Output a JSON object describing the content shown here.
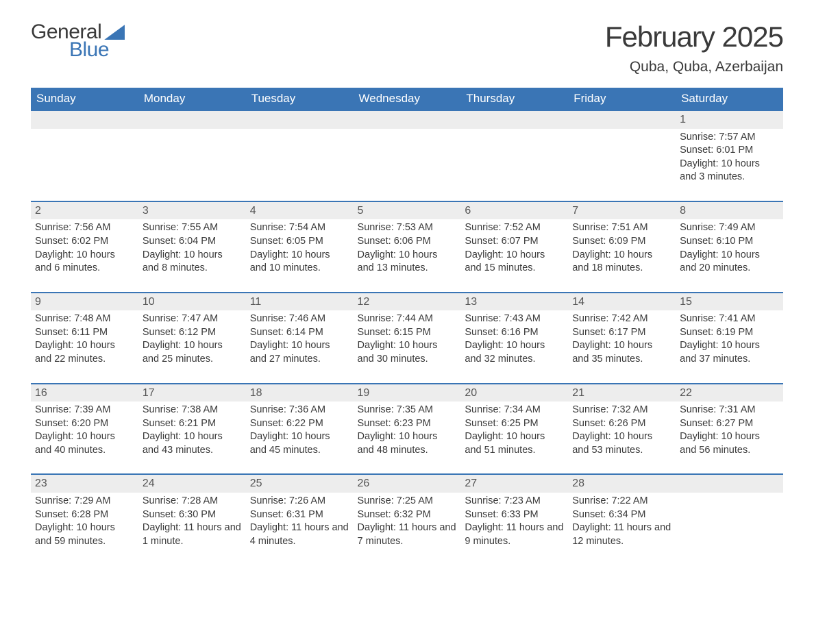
{
  "brand": {
    "line1": "General",
    "line2": "Blue",
    "accent_color": "#3a75b5"
  },
  "title": "February 2025",
  "location": "Quba, Quba, Azerbaijan",
  "colors": {
    "header_bg": "#3a75b5",
    "header_text": "#ffffff",
    "daynum_bg": "#ededed",
    "text": "#3a3a3a",
    "row_border": "#3a75b5",
    "page_bg": "#ffffff"
  },
  "typography": {
    "title_fontsize": 42,
    "location_fontsize": 21,
    "dayheader_fontsize": 17,
    "cell_fontsize": 14.5
  },
  "day_headers": [
    "Sunday",
    "Monday",
    "Tuesday",
    "Wednesday",
    "Thursday",
    "Friday",
    "Saturday"
  ],
  "weeks": [
    [
      null,
      null,
      null,
      null,
      null,
      null,
      {
        "n": "1",
        "sunrise": "Sunrise: 7:57 AM",
        "sunset": "Sunset: 6:01 PM",
        "daylight": "Daylight: 10 hours and 3 minutes."
      }
    ],
    [
      {
        "n": "2",
        "sunrise": "Sunrise: 7:56 AM",
        "sunset": "Sunset: 6:02 PM",
        "daylight": "Daylight: 10 hours and 6 minutes."
      },
      {
        "n": "3",
        "sunrise": "Sunrise: 7:55 AM",
        "sunset": "Sunset: 6:04 PM",
        "daylight": "Daylight: 10 hours and 8 minutes."
      },
      {
        "n": "4",
        "sunrise": "Sunrise: 7:54 AM",
        "sunset": "Sunset: 6:05 PM",
        "daylight": "Daylight: 10 hours and 10 minutes."
      },
      {
        "n": "5",
        "sunrise": "Sunrise: 7:53 AM",
        "sunset": "Sunset: 6:06 PM",
        "daylight": "Daylight: 10 hours and 13 minutes."
      },
      {
        "n": "6",
        "sunrise": "Sunrise: 7:52 AM",
        "sunset": "Sunset: 6:07 PM",
        "daylight": "Daylight: 10 hours and 15 minutes."
      },
      {
        "n": "7",
        "sunrise": "Sunrise: 7:51 AM",
        "sunset": "Sunset: 6:09 PM",
        "daylight": "Daylight: 10 hours and 18 minutes."
      },
      {
        "n": "8",
        "sunrise": "Sunrise: 7:49 AM",
        "sunset": "Sunset: 6:10 PM",
        "daylight": "Daylight: 10 hours and 20 minutes."
      }
    ],
    [
      {
        "n": "9",
        "sunrise": "Sunrise: 7:48 AM",
        "sunset": "Sunset: 6:11 PM",
        "daylight": "Daylight: 10 hours and 22 minutes."
      },
      {
        "n": "10",
        "sunrise": "Sunrise: 7:47 AM",
        "sunset": "Sunset: 6:12 PM",
        "daylight": "Daylight: 10 hours and 25 minutes."
      },
      {
        "n": "11",
        "sunrise": "Sunrise: 7:46 AM",
        "sunset": "Sunset: 6:14 PM",
        "daylight": "Daylight: 10 hours and 27 minutes."
      },
      {
        "n": "12",
        "sunrise": "Sunrise: 7:44 AM",
        "sunset": "Sunset: 6:15 PM",
        "daylight": "Daylight: 10 hours and 30 minutes."
      },
      {
        "n": "13",
        "sunrise": "Sunrise: 7:43 AM",
        "sunset": "Sunset: 6:16 PM",
        "daylight": "Daylight: 10 hours and 32 minutes."
      },
      {
        "n": "14",
        "sunrise": "Sunrise: 7:42 AM",
        "sunset": "Sunset: 6:17 PM",
        "daylight": "Daylight: 10 hours and 35 minutes."
      },
      {
        "n": "15",
        "sunrise": "Sunrise: 7:41 AM",
        "sunset": "Sunset: 6:19 PM",
        "daylight": "Daylight: 10 hours and 37 minutes."
      }
    ],
    [
      {
        "n": "16",
        "sunrise": "Sunrise: 7:39 AM",
        "sunset": "Sunset: 6:20 PM",
        "daylight": "Daylight: 10 hours and 40 minutes."
      },
      {
        "n": "17",
        "sunrise": "Sunrise: 7:38 AM",
        "sunset": "Sunset: 6:21 PM",
        "daylight": "Daylight: 10 hours and 43 minutes."
      },
      {
        "n": "18",
        "sunrise": "Sunrise: 7:36 AM",
        "sunset": "Sunset: 6:22 PM",
        "daylight": "Daylight: 10 hours and 45 minutes."
      },
      {
        "n": "19",
        "sunrise": "Sunrise: 7:35 AM",
        "sunset": "Sunset: 6:23 PM",
        "daylight": "Daylight: 10 hours and 48 minutes."
      },
      {
        "n": "20",
        "sunrise": "Sunrise: 7:34 AM",
        "sunset": "Sunset: 6:25 PM",
        "daylight": "Daylight: 10 hours and 51 minutes."
      },
      {
        "n": "21",
        "sunrise": "Sunrise: 7:32 AM",
        "sunset": "Sunset: 6:26 PM",
        "daylight": "Daylight: 10 hours and 53 minutes."
      },
      {
        "n": "22",
        "sunrise": "Sunrise: 7:31 AM",
        "sunset": "Sunset: 6:27 PM",
        "daylight": "Daylight: 10 hours and 56 minutes."
      }
    ],
    [
      {
        "n": "23",
        "sunrise": "Sunrise: 7:29 AM",
        "sunset": "Sunset: 6:28 PM",
        "daylight": "Daylight: 10 hours and 59 minutes."
      },
      {
        "n": "24",
        "sunrise": "Sunrise: 7:28 AM",
        "sunset": "Sunset: 6:30 PM",
        "daylight": "Daylight: 11 hours and 1 minute."
      },
      {
        "n": "25",
        "sunrise": "Sunrise: 7:26 AM",
        "sunset": "Sunset: 6:31 PM",
        "daylight": "Daylight: 11 hours and 4 minutes."
      },
      {
        "n": "26",
        "sunrise": "Sunrise: 7:25 AM",
        "sunset": "Sunset: 6:32 PM",
        "daylight": "Daylight: 11 hours and 7 minutes."
      },
      {
        "n": "27",
        "sunrise": "Sunrise: 7:23 AM",
        "sunset": "Sunset: 6:33 PM",
        "daylight": "Daylight: 11 hours and 9 minutes."
      },
      {
        "n": "28",
        "sunrise": "Sunrise: 7:22 AM",
        "sunset": "Sunset: 6:34 PM",
        "daylight": "Daylight: 11 hours and 12 minutes."
      },
      null
    ]
  ]
}
